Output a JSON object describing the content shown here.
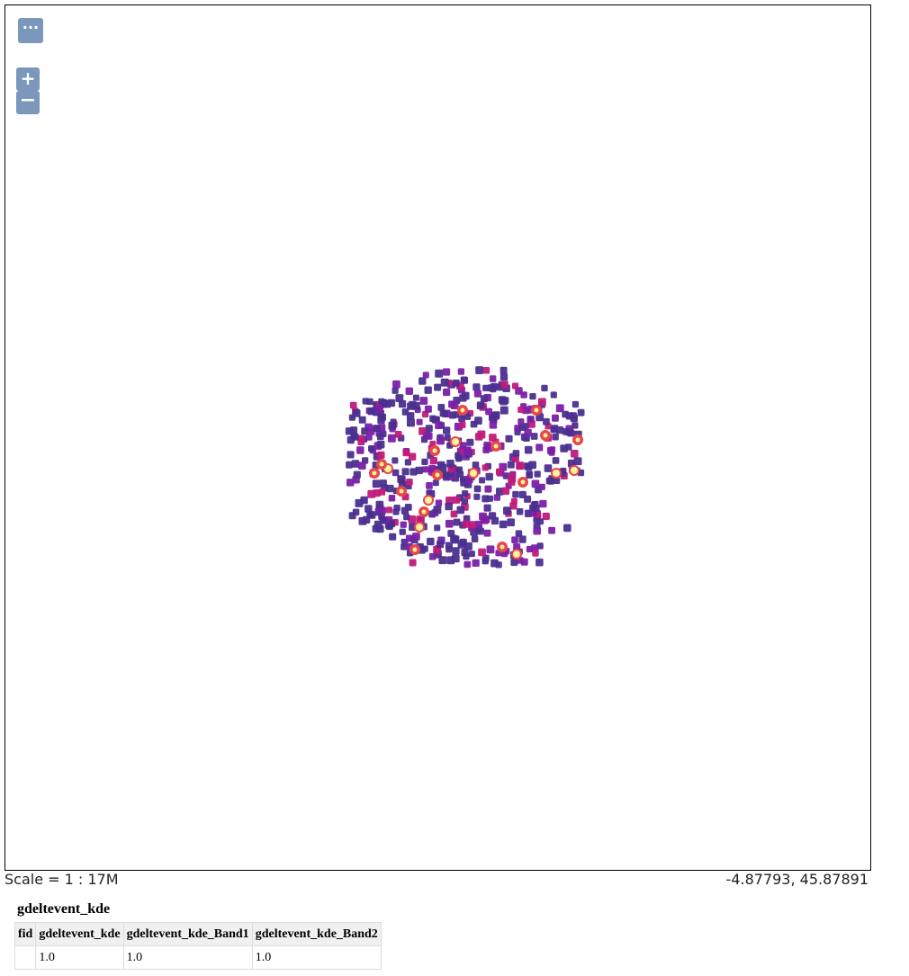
{
  "map": {
    "controls": {
      "toggle_label": "···",
      "zoom_in_label": "+",
      "zoom_out_label": "−"
    },
    "colors": {
      "low": "#4b2f8f",
      "mid_low": "#7a1fa8",
      "mid": "#c01a7a",
      "high": "#e8474a",
      "peak": "#fff3a0"
    }
  },
  "status": {
    "scale": "Scale = 1 : 17M",
    "coordinates": "-4.87793, 45.87891"
  },
  "attribute_table": {
    "layer_name": "gdeltevent_kde",
    "headers": [
      "fid",
      "gdeltevent_kde",
      "gdeltevent_kde_Band1",
      "gdeltevent_kde_Band2"
    ],
    "rows": [
      [
        "",
        "1.0",
        "1.0",
        "1.0"
      ]
    ]
  }
}
